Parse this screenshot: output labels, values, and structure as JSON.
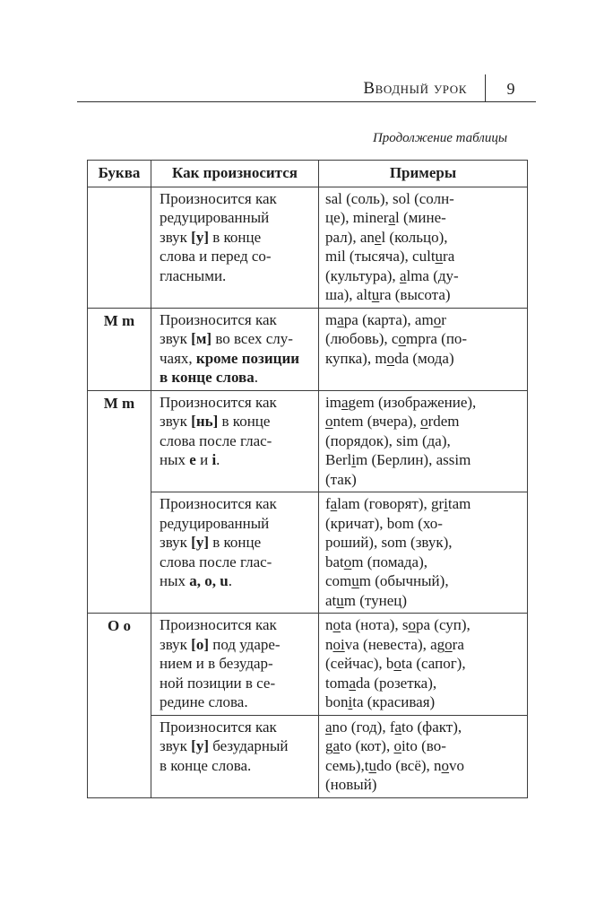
{
  "header": {
    "section_title": "Вводный урок",
    "page_number": "9"
  },
  "caption": "Продолжение таблицы",
  "table": {
    "columns": [
      "Буква",
      "Как произносится",
      "Примеры"
    ],
    "rows": [
      {
        "letter": "",
        "pronunciation": [
          {
            "t": "Произносится как\nредуцированный\nзвук "
          },
          {
            "t": "[у]",
            "b": true
          },
          {
            "t": " в конце\nслова и перед со-\nгласными."
          }
        ],
        "examples": [
          {
            "t": "sal (соль), sol (солн-\nце), miner"
          },
          {
            "t": "a",
            "u": true
          },
          {
            "t": "l (мине-\nрал), an"
          },
          {
            "t": "e",
            "u": true
          },
          {
            "t": "l (кольцо),\nmil (тысяча), cult"
          },
          {
            "t": "u",
            "u": true
          },
          {
            "t": "ra\n(культура), "
          },
          {
            "t": "a",
            "u": true
          },
          {
            "t": "lma (ду-\nша), alt"
          },
          {
            "t": "u",
            "u": true
          },
          {
            "t": "ra (высота)"
          }
        ]
      },
      {
        "letter": "M m",
        "pronunciation": [
          {
            "t": "Произносится как\nзвук "
          },
          {
            "t": "[м]",
            "b": true
          },
          {
            "t": " во всех слу-\nчаях, "
          },
          {
            "t": "кроме позиции\nв конце слова",
            "b": true
          },
          {
            "t": "."
          }
        ],
        "examples": [
          {
            "t": "m"
          },
          {
            "t": "a",
            "u": true
          },
          {
            "t": "pa (карта), am"
          },
          {
            "t": "o",
            "u": true
          },
          {
            "t": "r\n(любовь), c"
          },
          {
            "t": "o",
            "u": true
          },
          {
            "t": "mpra (по-\nкупка), m"
          },
          {
            "t": "o",
            "u": true
          },
          {
            "t": "da (мода)"
          }
        ]
      },
      {
        "letter": "M m",
        "pronunciation": [
          {
            "t": "Произносится как\nзвук "
          },
          {
            "t": "[нь]",
            "b": true
          },
          {
            "t": " в конце\nслова после глас-\nных "
          },
          {
            "t": "е",
            "b": true
          },
          {
            "t": " и "
          },
          {
            "t": "i",
            "b": true
          },
          {
            "t": "."
          }
        ],
        "examples": [
          {
            "t": "im"
          },
          {
            "t": "a",
            "u": true
          },
          {
            "t": "gem (изображение),\n"
          },
          {
            "t": "o",
            "u": true
          },
          {
            "t": "ntem (вчера), "
          },
          {
            "t": "o",
            "u": true
          },
          {
            "t": "rdem\n(порядок), sim (да),\nBerl"
          },
          {
            "t": "i",
            "u": true
          },
          {
            "t": "m (Берлин), assim\n(так)"
          }
        ]
      },
      {
        "letter": "",
        "pronunciation": [
          {
            "t": "Произносится как\nредуцированный\nзвук "
          },
          {
            "t": "[у]",
            "b": true
          },
          {
            "t": " в конце\nслова после глас-\nных "
          },
          {
            "t": "a, o, u",
            "b": true
          },
          {
            "t": "."
          }
        ],
        "examples": [
          {
            "t": "f"
          },
          {
            "t": "a",
            "u": true
          },
          {
            "t": "lam (говорят), gr"
          },
          {
            "t": "i",
            "u": true
          },
          {
            "t": "tam\n(кричат), bom (хо-\nроший), som (звук),\nbat"
          },
          {
            "t": "o",
            "u": true
          },
          {
            "t": "m (помада),\ncom"
          },
          {
            "t": "u",
            "u": true
          },
          {
            "t": "m (обычный),\nat"
          },
          {
            "t": "u",
            "u": true
          },
          {
            "t": "m (тунец)"
          }
        ]
      },
      {
        "letter": "O o",
        "pronunciation": [
          {
            "t": "Произносится как\nзвук "
          },
          {
            "t": "[о]",
            "b": true
          },
          {
            "t": " под ударе-\nнием и в безудар-\nной позиции в се-\nредине слова."
          }
        ],
        "examples": [
          {
            "t": "n"
          },
          {
            "t": "o",
            "u": true
          },
          {
            "t": "ta (нота), s"
          },
          {
            "t": "o",
            "u": true
          },
          {
            "t": "pa (суп),\nn"
          },
          {
            "t": "oi",
            "u": true
          },
          {
            "t": "va (невеста), ag"
          },
          {
            "t": "o",
            "u": true
          },
          {
            "t": "ra\n(сейчас), b"
          },
          {
            "t": "o",
            "u": true
          },
          {
            "t": "ta (сапог),\ntom"
          },
          {
            "t": "a",
            "u": true
          },
          {
            "t": "da (розетка),\nbon"
          },
          {
            "t": "i",
            "u": true
          },
          {
            "t": "ta (красивая)"
          }
        ]
      },
      {
        "letter": "",
        "pronunciation": [
          {
            "t": "Произносится как\nзвук "
          },
          {
            "t": "[у]",
            "b": true
          },
          {
            "t": " безударный\nв конце слова."
          }
        ],
        "examples": [
          {
            "t": "a",
            "u": true
          },
          {
            "t": "no (год), f"
          },
          {
            "t": "a",
            "u": true
          },
          {
            "t": "to (факт),\ng"
          },
          {
            "t": "a",
            "u": true
          },
          {
            "t": "to (кот), "
          },
          {
            "t": "o",
            "u": true
          },
          {
            "t": "ito (во-\nсемь),t"
          },
          {
            "t": "u",
            "u": true
          },
          {
            "t": "do (всё), n"
          },
          {
            "t": "o",
            "u": true
          },
          {
            "t": "vo\n(новый)"
          }
        ]
      }
    ]
  }
}
